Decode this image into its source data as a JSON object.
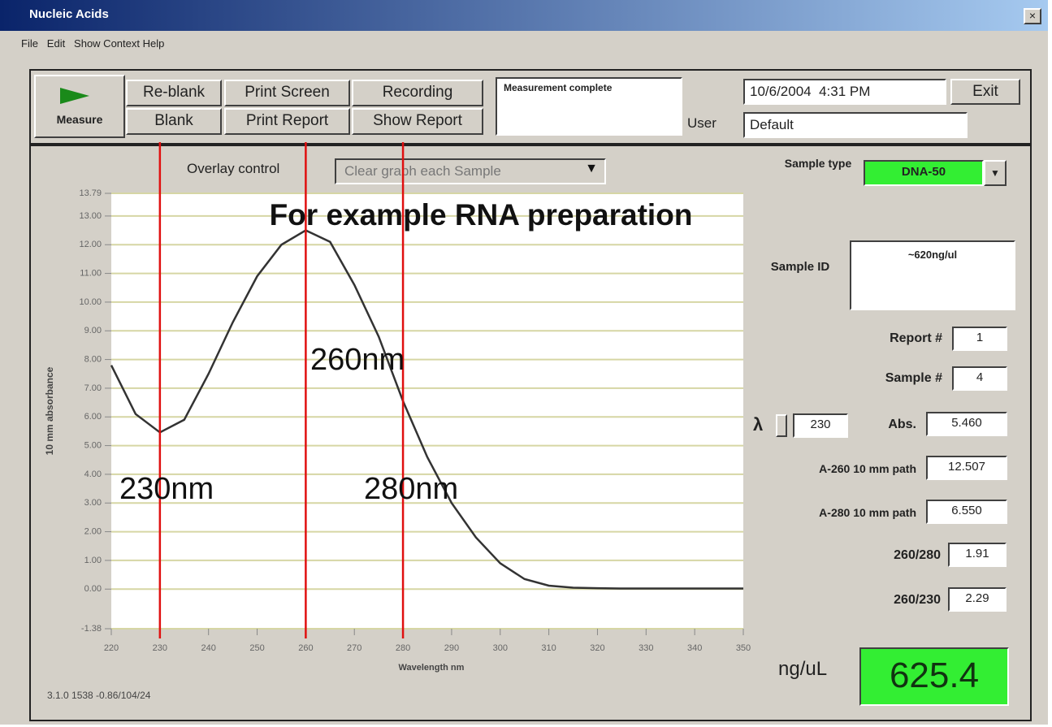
{
  "window": {
    "title": "Nucleic Acids",
    "menu": [
      "File",
      "Edit",
      "Show Context Help"
    ]
  },
  "toolbar": {
    "measure": "Measure",
    "buttons": [
      [
        "Re-blank",
        "Blank"
      ],
      [
        "Print Screen",
        "Print Report"
      ],
      [
        "Recording",
        "Show Report"
      ]
    ],
    "status": "Measurement complete",
    "date": "10/6/2004  4:31 PM",
    "exit": "Exit",
    "user_label": "User",
    "user": "Default"
  },
  "overlay": {
    "label": "Overlay control",
    "option": "Clear graph each Sample"
  },
  "chart_data": {
    "type": "line",
    "color": "#333333",
    "x": [
      220,
      225,
      230,
      235,
      240,
      245,
      250,
      255,
      260,
      265,
      270,
      275,
      280,
      285,
      290,
      295,
      300,
      305,
      310,
      315,
      320,
      325,
      330,
      335,
      340,
      345,
      350
    ],
    "values": [
      7.8,
      6.1,
      5.46,
      5.9,
      7.5,
      9.3,
      10.9,
      12.0,
      12.5,
      12.1,
      10.6,
      8.8,
      6.55,
      4.6,
      3.0,
      1.8,
      0.9,
      0.35,
      0.12,
      0.05,
      0.03,
      0.02,
      0.02,
      0.02,
      0.02,
      0.02,
      0.02
    ],
    "xlim": [
      220,
      350
    ],
    "xticks": [
      220,
      230,
      240,
      250,
      260,
      270,
      280,
      290,
      300,
      310,
      320,
      330,
      340,
      350
    ],
    "ylim": [
      -1.38,
      13.79
    ],
    "yticks": [
      {
        "value": -1.38,
        "label": "-1.38"
      },
      {
        "value": 0,
        "label": "0.00"
      },
      {
        "value": 1,
        "label": "1.00"
      },
      {
        "value": 2,
        "label": "2.00"
      },
      {
        "value": 3,
        "label": "3.00"
      },
      {
        "value": 4,
        "label": "4.00"
      },
      {
        "value": 5,
        "label": "5.00"
      },
      {
        "value": 6,
        "label": "6.00"
      },
      {
        "value": 7,
        "label": "7.00"
      },
      {
        "value": 8,
        "label": "8.00"
      },
      {
        "value": 9,
        "label": "9.00"
      },
      {
        "value": 10,
        "label": "10.00"
      },
      {
        "value": 11,
        "label": "11.00"
      },
      {
        "value": 12,
        "label": "12.00"
      },
      {
        "value": 13,
        "label": "13.00"
      },
      {
        "value": 13.79,
        "label": "13.79"
      }
    ],
    "grid": true,
    "grid_color": "#d6d6a4",
    "xlabel": "Wavelength nm",
    "ylabel": "10 mm absorbance",
    "annotation": "For example RNA preparation",
    "markers": {
      "values": [
        230,
        260,
        280
      ],
      "labels": [
        "230nm",
        "260nm",
        "280nm"
      ],
      "color": "#e01010"
    }
  },
  "panel": {
    "sample_type_label": "Sample type",
    "sample_type": "DNA-50",
    "sample_id_label": "Sample ID",
    "sample_id": "~620ng/ul",
    "report_label": "Report #",
    "report": "1",
    "sample_label": "Sample #",
    "sample": "4",
    "lambda_label": "λ",
    "lambda": "230",
    "abs_label": "Abs.",
    "abs": "5.460",
    "a260_label": "A-260 10 mm path",
    "a260": "12.507",
    "a280_label": "A-280 10 mm path",
    "a280": "6.550",
    "r260_280_label": "260/280",
    "r260_280": "1.91",
    "r260_230_label": "260/230",
    "r260_230": "2.29",
    "conc_label": "ng/uL",
    "conc": "625.4"
  },
  "footer": "3.1.0 1538 -0.86/104/24"
}
